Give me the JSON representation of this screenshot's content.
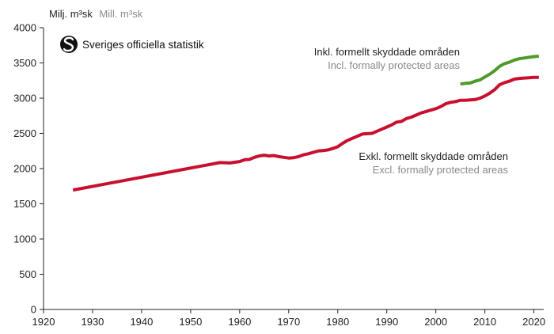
{
  "chart_data": {
    "type": "line",
    "ylabel_sv": "Milj. m³sk",
    "ylabel_en": "Mill. m³sk",
    "xlim": [
      1920,
      2022
    ],
    "ylim": [
      0,
      4000
    ],
    "x_ticks": [
      "1920",
      "1930",
      "1940",
      "1950",
      "1960",
      "1970",
      "1980",
      "1990",
      "2000",
      "2010",
      "2020"
    ],
    "y_ticks": [
      "0",
      "500",
      "1000",
      "1500",
      "2000",
      "2500",
      "3000",
      "3500",
      "4000"
    ],
    "grid": false,
    "logo_text": "Sveriges officiella statistik",
    "series": [
      {
        "key": "excl",
        "name_sv": "Exkl. formellt skyddade områden",
        "name_en": "Excl. formally protected areas",
        "color": "#c8102e",
        "points": [
          [
            1926,
            1695
          ],
          [
            1956,
            2085
          ],
          [
            1958,
            2080
          ],
          [
            1959,
            2090
          ],
          [
            1960,
            2100
          ],
          [
            1961,
            2125
          ],
          [
            1962,
            2130
          ],
          [
            1963,
            2160
          ],
          [
            1964,
            2180
          ],
          [
            1965,
            2190
          ],
          [
            1966,
            2180
          ],
          [
            1967,
            2185
          ],
          [
            1968,
            2170
          ],
          [
            1969,
            2160
          ],
          [
            1970,
            2150
          ],
          [
            1971,
            2155
          ],
          [
            1972,
            2170
          ],
          [
            1973,
            2195
          ],
          [
            1974,
            2210
          ],
          [
            1975,
            2230
          ],
          [
            1976,
            2250
          ],
          [
            1977,
            2255
          ],
          [
            1978,
            2265
          ],
          [
            1979,
            2285
          ],
          [
            1980,
            2310
          ],
          [
            1981,
            2360
          ],
          [
            1982,
            2400
          ],
          [
            1983,
            2430
          ],
          [
            1984,
            2460
          ],
          [
            1985,
            2490
          ],
          [
            1986,
            2495
          ],
          [
            1987,
            2500
          ],
          [
            1988,
            2530
          ],
          [
            1989,
            2560
          ],
          [
            1990,
            2590
          ],
          [
            1991,
            2620
          ],
          [
            1992,
            2660
          ],
          [
            1993,
            2670
          ],
          [
            1994,
            2710
          ],
          [
            1995,
            2730
          ],
          [
            1996,
            2760
          ],
          [
            1997,
            2790
          ],
          [
            1998,
            2810
          ],
          [
            1999,
            2830
          ],
          [
            2000,
            2850
          ],
          [
            2001,
            2880
          ],
          [
            2002,
            2920
          ],
          [
            2003,
            2940
          ],
          [
            2004,
            2950
          ],
          [
            2005,
            2970
          ],
          [
            2006,
            2970
          ],
          [
            2007,
            2975
          ],
          [
            2008,
            2980
          ],
          [
            2009,
            3000
          ],
          [
            2010,
            3030
          ],
          [
            2011,
            3070
          ],
          [
            2012,
            3120
          ],
          [
            2013,
            3190
          ],
          [
            2014,
            3220
          ],
          [
            2015,
            3240
          ],
          [
            2016,
            3270
          ],
          [
            2017,
            3280
          ],
          [
            2018,
            3285
          ],
          [
            2019,
            3290
          ],
          [
            2020,
            3295
          ],
          [
            2021,
            3295
          ]
        ]
      },
      {
        "key": "incl",
        "name_sv": "Inkl. formellt skyddade områden",
        "name_en": "Incl. formally protected areas",
        "color": "#4f9a2a",
        "points": [
          [
            2005,
            3200
          ],
          [
            2006,
            3210
          ],
          [
            2007,
            3215
          ],
          [
            2008,
            3240
          ],
          [
            2009,
            3260
          ],
          [
            2010,
            3300
          ],
          [
            2011,
            3340
          ],
          [
            2012,
            3390
          ],
          [
            2013,
            3450
          ],
          [
            2014,
            3490
          ],
          [
            2015,
            3510
          ],
          [
            2016,
            3540
          ],
          [
            2017,
            3560
          ],
          [
            2018,
            3570
          ],
          [
            2019,
            3580
          ],
          [
            2020,
            3590
          ],
          [
            2021,
            3595
          ]
        ]
      }
    ]
  }
}
